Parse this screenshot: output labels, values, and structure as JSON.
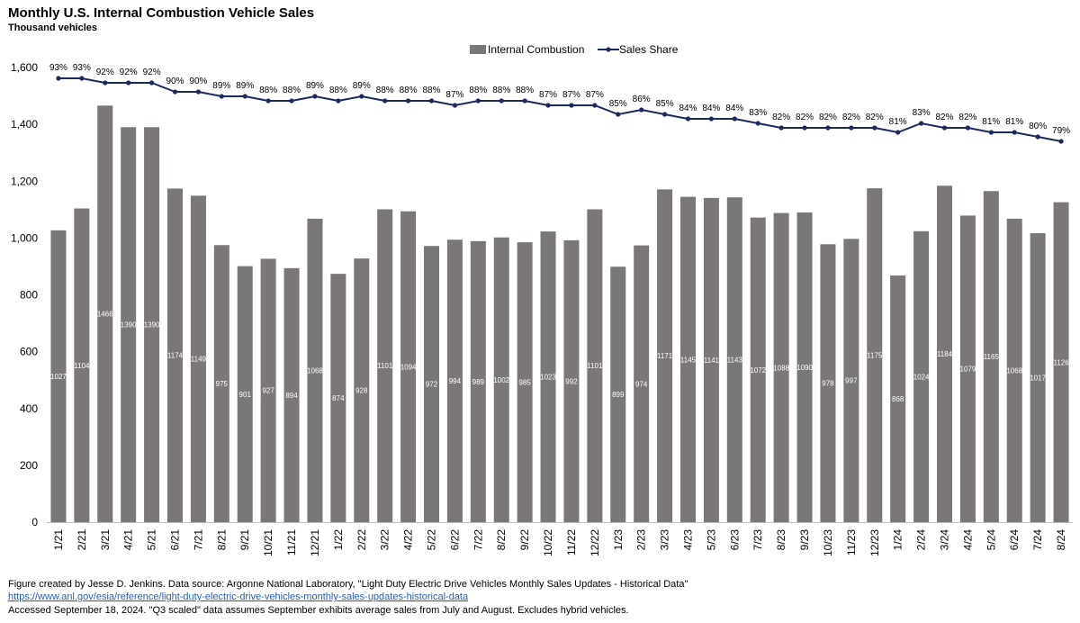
{
  "title": "Monthly U.S. Internal Combustion Vehicle Sales",
  "subtitle": "Thousand vehicles",
  "footer": {
    "line1": "Figure created by Jesse D. Jenkins. Data source: Argonne National Laboratory, \"Light Duty Electric Drive Vehicles Monthly Sales Updates - Historical Data\"",
    "link": "https://www.anl.gov/esia/reference/light-duty-electric-drive-vehicles-monthly-sales-updates-historical-data",
    "line3": "Accessed September 18, 2024. \"Q3 scaled\" data assumes September exhibits average sales from July and August. Excludes hybrid vehicles."
  },
  "colors": {
    "bar": "#7b7677",
    "line": "#1a2a5e",
    "bar_label": "#ffffff",
    "link": "#2a5db0"
  },
  "chart_data": {
    "type": "bar",
    "categories": [
      "1/21",
      "2/21",
      "3/21",
      "4/21",
      "5/21",
      "6/21",
      "7/21",
      "8/21",
      "9/21",
      "10/21",
      "11/21",
      "12/21",
      "1/22",
      "2/22",
      "3/22",
      "4/22",
      "5/22",
      "6/22",
      "7/22",
      "8/22",
      "9/22",
      "10/22",
      "11/22",
      "12/22",
      "1/23",
      "2/23",
      "3/23",
      "4/23",
      "5/23",
      "6/23",
      "7/23",
      "8/23",
      "9/23",
      "10/23",
      "11/23",
      "12/23",
      "1/24",
      "2/24",
      "3/24",
      "4/24",
      "5/24",
      "6/24",
      "7/24",
      "8/24"
    ],
    "series": [
      {
        "name": "Internal Combustion",
        "type": "bar",
        "values": [
          1027,
          1104,
          1466,
          1390,
          1390,
          1174,
          1149,
          975,
          901,
          927,
          894,
          1068,
          874,
          928,
          1101,
          1094,
          972,
          994,
          989,
          1002,
          985,
          1023,
          992,
          1101,
          899,
          974,
          1171,
          1145,
          1141,
          1143,
          1072,
          1088,
          1090,
          978,
          997,
          1175,
          868,
          1024,
          1184,
          1079,
          1165,
          1068,
          1017,
          1126
        ]
      },
      {
        "name": "Sales Share",
        "type": "line",
        "values": [
          93,
          93,
          92,
          92,
          92,
          90,
          90,
          89,
          89,
          88,
          88,
          89,
          88,
          89,
          88,
          88,
          88,
          87,
          88,
          88,
          88,
          87,
          87,
          87,
          85,
          86,
          85,
          84,
          84,
          84,
          83,
          82,
          82,
          82,
          82,
          82,
          81,
          83,
          82,
          82,
          81,
          81,
          80,
          79
        ],
        "labels": [
          "93%",
          "93%",
          "92%",
          "92%",
          "92%",
          "90%",
          "90%",
          "89%",
          "89%",
          "88%",
          "88%",
          "89%",
          "88%",
          "89%",
          "88%",
          "88%",
          "88%",
          "87%",
          "88%",
          "88%",
          "88%",
          "87%",
          "87%",
          "87%",
          "85%",
          "86%",
          "85%",
          "84%",
          "84%",
          "84%",
          "83%",
          "82%",
          "82%",
          "82%",
          "82%",
          "82%",
          "81%",
          "83%",
          "82%",
          "82%",
          "81%",
          "81%",
          "80%",
          "79%"
        ],
        "unit": "%"
      }
    ],
    "ylim": [
      0,
      1600
    ],
    "yticks": [
      0,
      200,
      400,
      600,
      800,
      1000,
      1200,
      1400,
      1600
    ],
    "ytick_labels": [
      "0",
      "200",
      "400",
      "600",
      "800",
      "1,000",
      "1,200",
      "1,400",
      "1,600"
    ],
    "grid": false,
    "legend": "top-center"
  }
}
